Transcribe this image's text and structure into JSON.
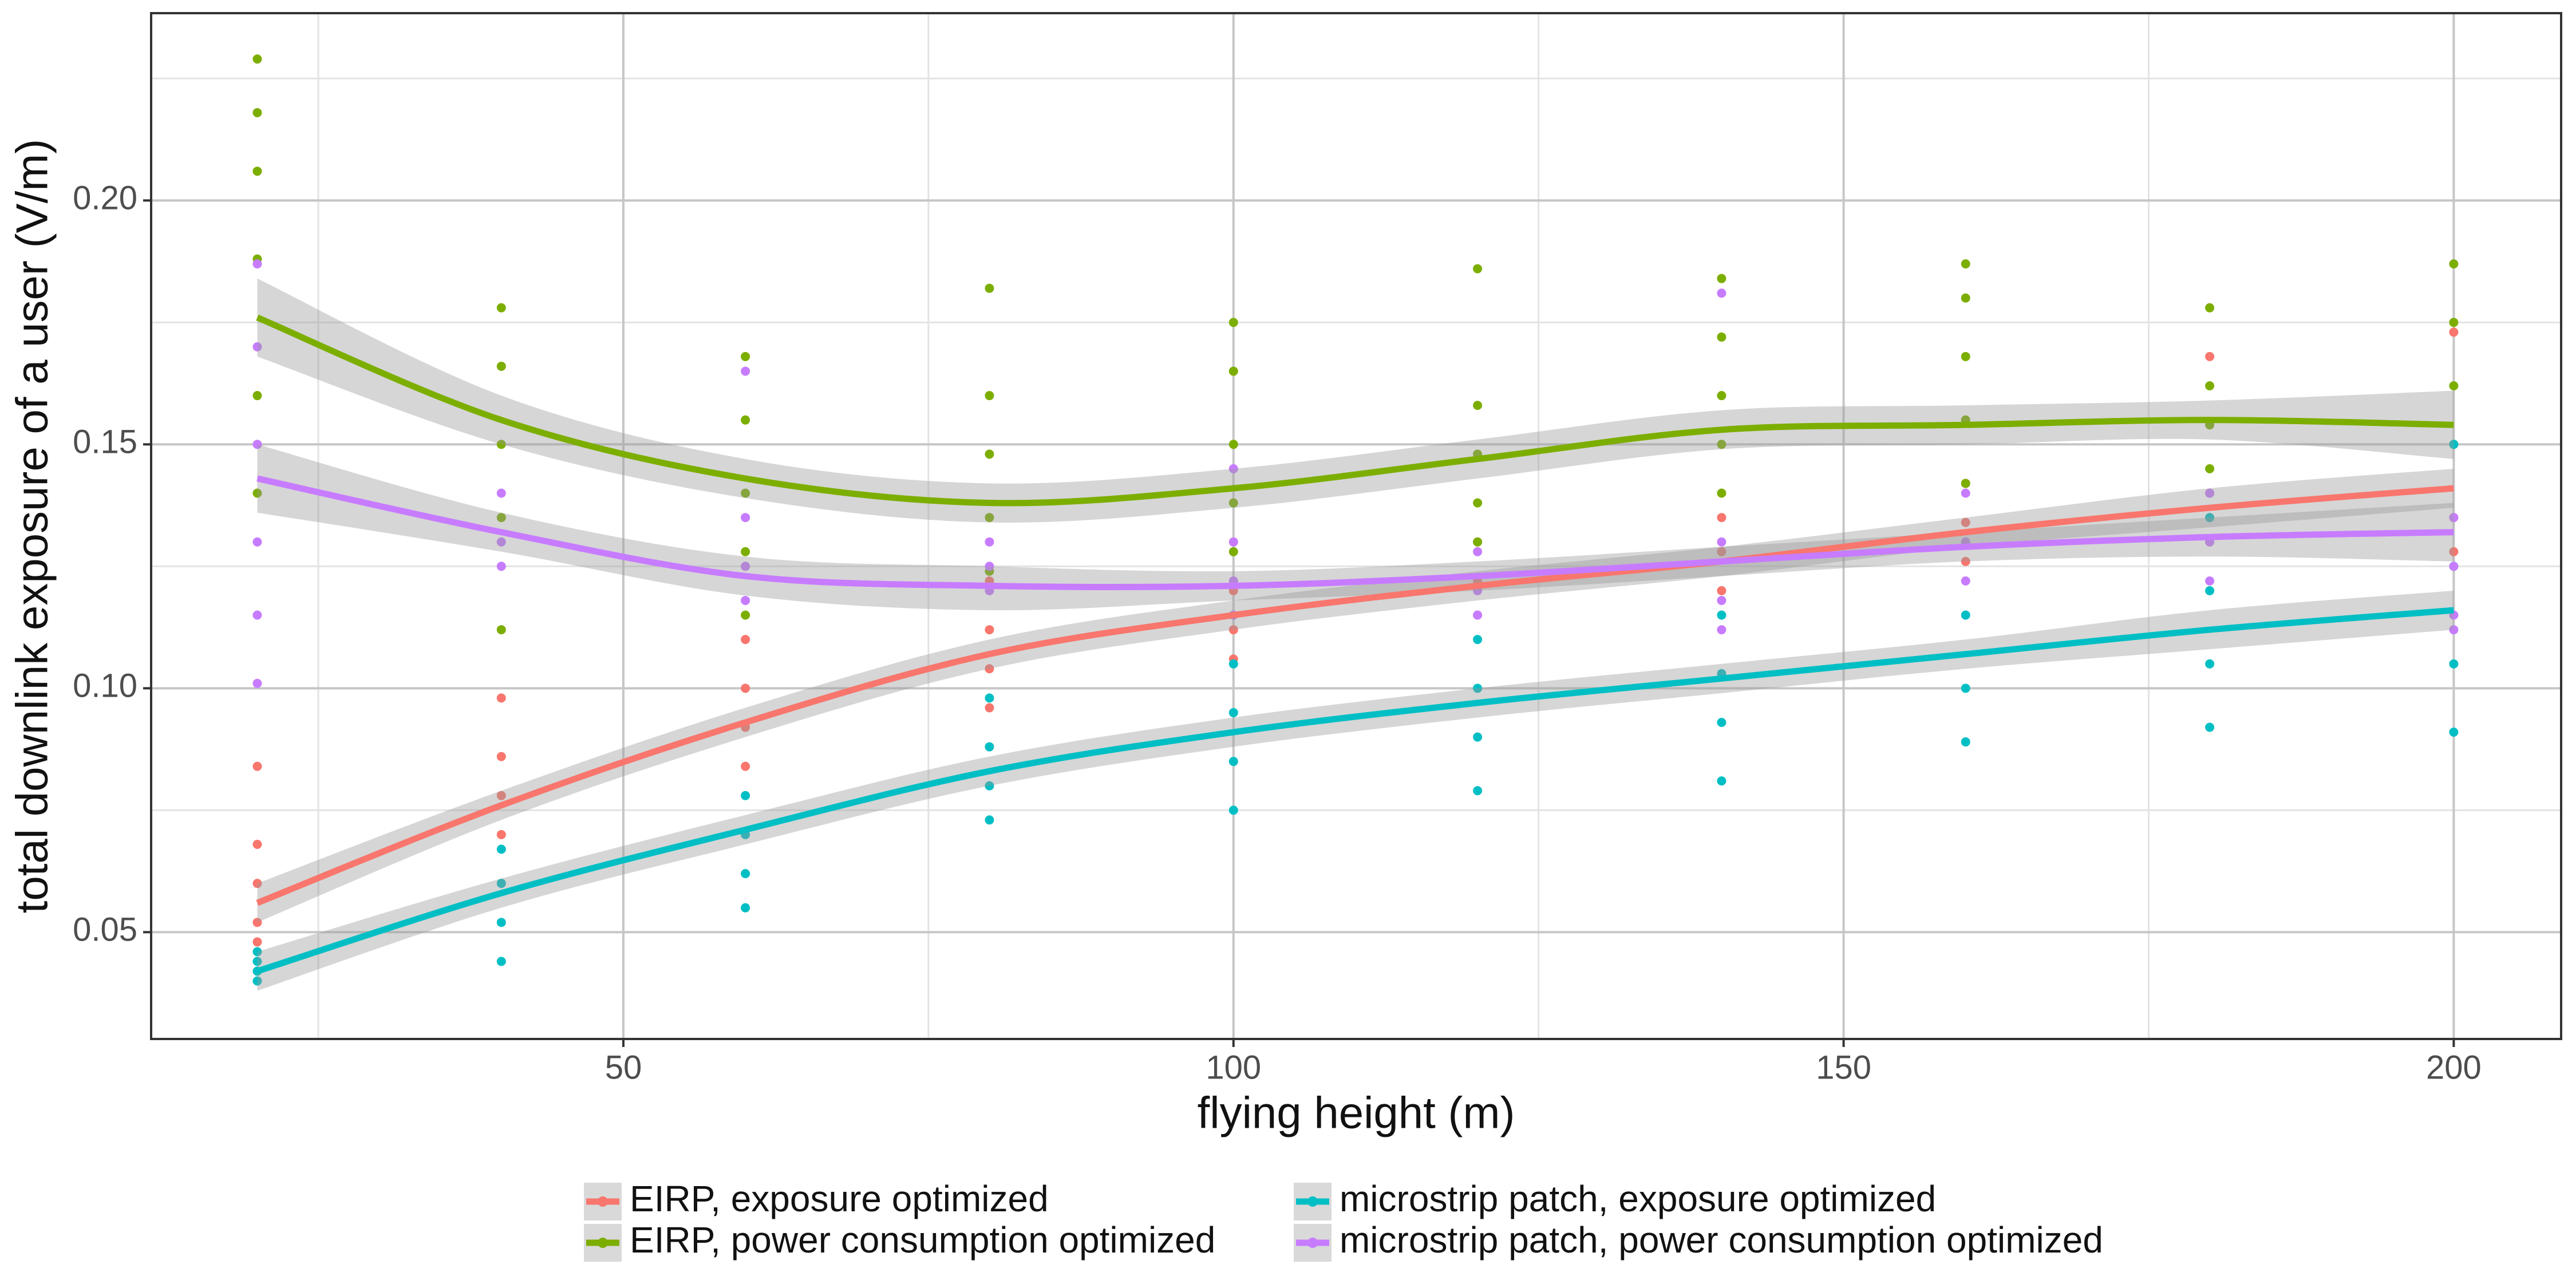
{
  "chart_data": {
    "type": "scatter_smooth",
    "x_label": "flying height (m)",
    "y_label": "total downlink exposure of a user (V/m)",
    "xlim": [
      11.3,
      208.8
    ],
    "ylim": [
      0.0281,
      0.2384
    ],
    "xticks": [
      50,
      100,
      150,
      200
    ],
    "yticks": [
      0.05,
      {
        "value": 0.1,
        "label": "0.10"
      },
      0.15,
      {
        "value": 0.2,
        "label": "0.20"
      }
    ],
    "x_minor": [
      25,
      75,
      125,
      175
    ],
    "y_minor": [
      0.075,
      0.125,
      0.175,
      0.225
    ],
    "grid": true,
    "legend": "bottom",
    "x": [
      20,
      40,
      60,
      80,
      100,
      120,
      140,
      160,
      180,
      200
    ],
    "series": [
      {
        "name": "EIRP, exposure optimized",
        "color": "#F8766D",
        "values": [
          0.056,
          0.076,
          0.093,
          0.107,
          0.115,
          0.121,
          0.126,
          0.132,
          0.137,
          0.141
        ],
        "lower": [
          0.052,
          0.073,
          0.09,
          0.104,
          0.112,
          0.118,
          0.123,
          0.129,
          0.133,
          0.137
        ],
        "upper": [
          0.06,
          0.079,
          0.096,
          0.11,
          0.118,
          0.124,
          0.129,
          0.135,
          0.141,
          0.145
        ],
        "points_x": [
          20,
          20,
          20,
          20,
          20,
          40,
          40,
          40,
          40,
          60,
          60,
          60,
          60,
          80,
          80,
          80,
          80,
          100,
          100,
          100,
          100,
          120,
          120,
          120,
          140,
          140,
          140,
          160,
          160,
          160,
          180,
          180,
          180,
          200,
          200,
          200,
          200
        ],
        "points_y": [
          0.084,
          0.068,
          0.06,
          0.052,
          0.048,
          0.098,
          0.086,
          0.078,
          0.07,
          0.11,
          0.1,
          0.092,
          0.084,
          0.122,
          0.112,
          0.104,
          0.096,
          0.13,
          0.12,
          0.112,
          0.106,
          0.13,
          0.122,
          0.115,
          0.135,
          0.128,
          0.12,
          0.142,
          0.134,
          0.126,
          0.168,
          0.14,
          0.13,
          0.173,
          0.15,
          0.135,
          0.128
        ]
      },
      {
        "name": "EIRP, power consumption optimized",
        "color": "#7CAE00",
        "values": [
          0.176,
          0.155,
          0.143,
          0.138,
          0.141,
          0.147,
          0.153,
          0.154,
          0.155,
          0.154
        ],
        "lower": [
          0.168,
          0.15,
          0.139,
          0.134,
          0.137,
          0.143,
          0.149,
          0.15,
          0.151,
          0.147
        ],
        "upper": [
          0.184,
          0.16,
          0.147,
          0.142,
          0.145,
          0.151,
          0.157,
          0.158,
          0.159,
          0.161
        ],
        "points_x": [
          20,
          20,
          20,
          20,
          20,
          20,
          40,
          40,
          40,
          40,
          40,
          60,
          60,
          60,
          60,
          60,
          80,
          80,
          80,
          80,
          80,
          100,
          100,
          100,
          100,
          100,
          120,
          120,
          120,
          120,
          120,
          140,
          140,
          140,
          140,
          140,
          160,
          160,
          160,
          160,
          160,
          180,
          180,
          180,
          180,
          200,
          200,
          200,
          200
        ],
        "points_y": [
          0.229,
          0.218,
          0.206,
          0.188,
          0.16,
          0.14,
          0.178,
          0.166,
          0.15,
          0.135,
          0.112,
          0.168,
          0.155,
          0.14,
          0.128,
          0.115,
          0.182,
          0.16,
          0.148,
          0.135,
          0.124,
          0.175,
          0.165,
          0.15,
          0.138,
          0.128,
          0.186,
          0.158,
          0.148,
          0.138,
          0.13,
          0.184,
          0.172,
          0.16,
          0.15,
          0.14,
          0.187,
          0.18,
          0.168,
          0.155,
          0.142,
          0.178,
          0.162,
          0.154,
          0.145,
          0.187,
          0.175,
          0.162,
          0.15
        ]
      },
      {
        "name": "microstrip patch, exposure optimized",
        "color": "#00BFC4",
        "values": [
          0.042,
          0.058,
          0.071,
          0.083,
          0.091,
          0.097,
          0.102,
          0.107,
          0.112,
          0.116
        ],
        "lower": [
          0.038,
          0.055,
          0.068,
          0.08,
          0.088,
          0.094,
          0.099,
          0.104,
          0.108,
          0.112
        ],
        "upper": [
          0.046,
          0.061,
          0.074,
          0.086,
          0.094,
          0.1,
          0.105,
          0.11,
          0.116,
          0.12
        ],
        "points_x": [
          20,
          20,
          20,
          20,
          40,
          40,
          40,
          40,
          60,
          60,
          60,
          60,
          80,
          80,
          80,
          80,
          100,
          100,
          100,
          100,
          120,
          120,
          120,
          120,
          140,
          140,
          140,
          140,
          160,
          160,
          160,
          160,
          180,
          180,
          180,
          180,
          200,
          200,
          200,
          200
        ],
        "points_y": [
          0.046,
          0.044,
          0.042,
          0.04,
          0.067,
          0.06,
          0.052,
          0.044,
          0.078,
          0.07,
          0.062,
          0.055,
          0.098,
          0.088,
          0.08,
          0.073,
          0.105,
          0.095,
          0.085,
          0.075,
          0.11,
          0.1,
          0.09,
          0.079,
          0.115,
          0.103,
          0.093,
          0.081,
          0.13,
          0.115,
          0.1,
          0.089,
          0.135,
          0.12,
          0.105,
          0.092,
          0.15,
          0.125,
          0.105,
          0.091
        ]
      },
      {
        "name": "microstrip patch, power consumption optimized",
        "color": "#C77CFF",
        "values": [
          0.143,
          0.132,
          0.123,
          0.121,
          0.121,
          0.123,
          0.126,
          0.129,
          0.131,
          0.132
        ],
        "lower": [
          0.136,
          0.128,
          0.119,
          0.116,
          0.118,
          0.12,
          0.123,
          0.126,
          0.127,
          0.126
        ],
        "upper": [
          0.15,
          0.136,
          0.127,
          0.125,
          0.124,
          0.126,
          0.129,
          0.132,
          0.135,
          0.138
        ],
        "points_x": [
          20,
          20,
          20,
          20,
          20,
          20,
          40,
          40,
          40,
          60,
          60,
          60,
          60,
          80,
          80,
          80,
          100,
          100,
          100,
          100,
          120,
          120,
          120,
          140,
          140,
          140,
          140,
          160,
          160,
          160,
          180,
          180,
          180,
          200,
          200,
          200,
          200
        ],
        "points_y": [
          0.187,
          0.17,
          0.15,
          0.13,
          0.115,
          0.101,
          0.14,
          0.13,
          0.125,
          0.165,
          0.135,
          0.125,
          0.118,
          0.13,
          0.125,
          0.12,
          0.145,
          0.13,
          0.122,
          0.115,
          0.128,
          0.12,
          0.115,
          0.181,
          0.13,
          0.118,
          0.112,
          0.14,
          0.13,
          0.122,
          0.14,
          0.13,
          0.122,
          0.135,
          0.125,
          0.115,
          0.112
        ]
      }
    ]
  }
}
